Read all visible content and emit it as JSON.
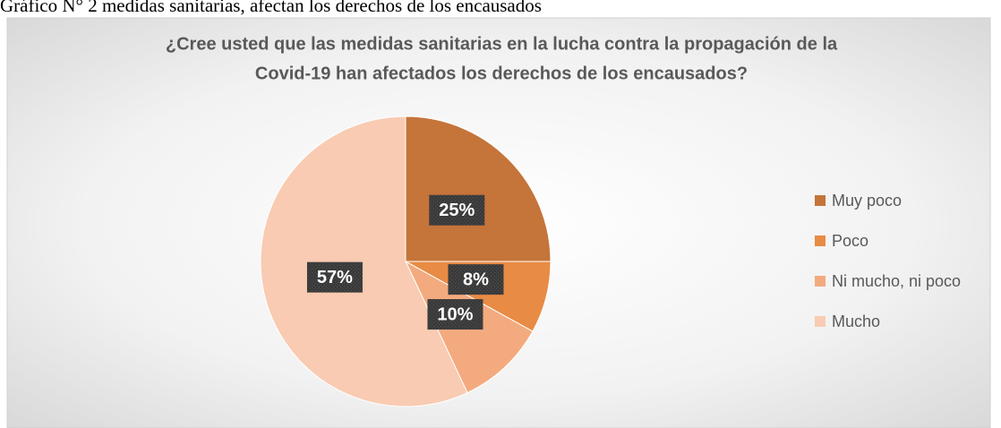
{
  "caption": "Gráfico N° 2 medidas sanitarias, afectan los derechos de los encausados",
  "chart_data": {
    "type": "pie",
    "title": [
      "¿Cree usted que las medidas sanitarias en la lucha contra la propagación de la",
      "Covid-19 han afectados los derechos de los encausados?"
    ],
    "categories": [
      "Muy poco",
      "Poco",
      "Ni mucho, ni poco",
      "Mucho"
    ],
    "values": [
      25,
      8,
      10,
      57
    ],
    "value_labels": [
      "25%",
      "8%",
      "10%",
      "57%"
    ],
    "colors": [
      "#C5743A",
      "#E88B45",
      "#F4AA7F",
      "#F8CBB2"
    ],
    "legend": "right"
  }
}
